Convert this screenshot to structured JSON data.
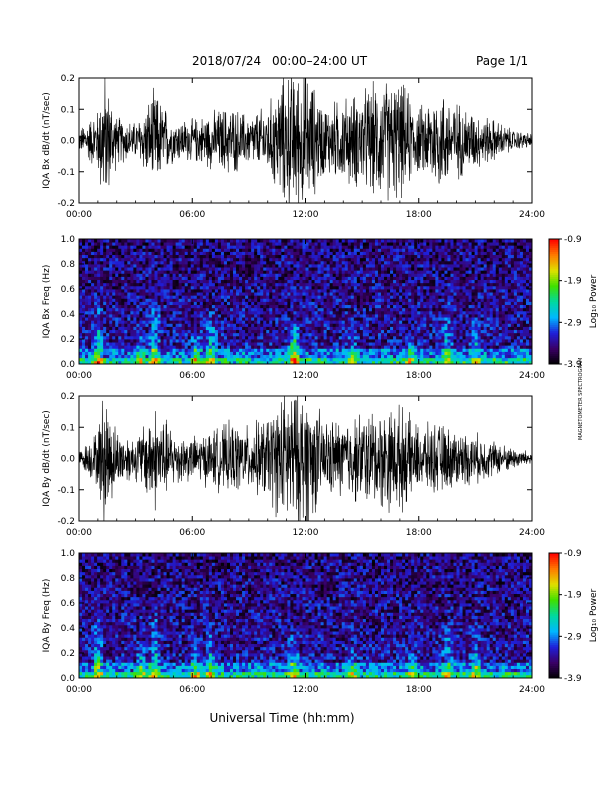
{
  "header": {
    "date": "2018/07/24",
    "time_range": "00:00–24:00 UT",
    "page": "Page 1/1"
  },
  "footer": {
    "xlabel": "Universal Time (hh:mm)"
  },
  "side_note": "MAGNETOMETER SPECTROGRAM",
  "colors": {
    "trace": "#000000",
    "frame": "#000000"
  },
  "colorbar": {
    "ticks": [
      "-0.9",
      "-1.9",
      "-2.9",
      "-3.9"
    ],
    "title": "Log₁₀ Power",
    "range": [
      -3.9,
      -0.9
    ],
    "colormap": [
      "#000000",
      "#3a0066",
      "#1f1fd9",
      "#00b7ff",
      "#00d9a0",
      "#3fe000",
      "#e0e000",
      "#ff7a00",
      "#ff0000"
    ]
  },
  "chart_data": [
    {
      "type": "line",
      "title": "2018/07/24  00:00–24:00 UT",
      "ylabel": "IQA Bx dB/dt (nT/sec)",
      "xlabel": "",
      "xlim": [
        0,
        24
      ],
      "ylim": [
        -0.2,
        0.2
      ],
      "x_ticks": [
        "00:00",
        "06:00",
        "12:00",
        "18:00",
        "24:00"
      ],
      "y_ticks": [
        "0.2",
        "0.1",
        "0.0",
        "-0.1",
        "-0.2"
      ],
      "series": [
        {
          "hours": [
            0,
            1,
            1.3,
            2,
            3,
            4,
            5,
            6,
            7,
            8,
            9,
            10,
            11,
            11.5,
            12,
            13,
            14,
            15,
            16,
            17,
            18,
            19,
            20,
            21,
            22,
            23,
            24
          ],
          "amplitude": [
            0.03,
            0.09,
            0.2,
            0.07,
            0.05,
            0.14,
            0.06,
            0.06,
            0.08,
            0.1,
            0.07,
            0.1,
            0.2,
            0.2,
            0.2,
            0.1,
            0.12,
            0.14,
            0.17,
            0.17,
            0.09,
            0.15,
            0.11,
            0.08,
            0.06,
            0.03,
            0.02
          ]
        }
      ]
    },
    {
      "type": "heatmap",
      "ylabel": "IQA Bx Freq (Hz)",
      "xlim": [
        0,
        24
      ],
      "ylim": [
        0,
        1.0
      ],
      "x_ticks": [
        "00:00",
        "06:00",
        "12:00",
        "18:00",
        "24:00"
      ],
      "y_ticks": [
        "1.0",
        "0.8",
        "0.6",
        "0.4",
        "0.2",
        "0.0"
      ],
      "value_range": [
        -3.9,
        -0.9
      ],
      "bursts": [
        {
          "hour": 1.0,
          "top_hz": 0.55,
          "peak": -2.2
        },
        {
          "hour": 3.3,
          "top_hz": 0.35,
          "peak": -2.6
        },
        {
          "hour": 4.0,
          "top_hz": 0.65,
          "peak": -2.4
        },
        {
          "hour": 6.2,
          "top_hz": 0.35,
          "peak": -2.6
        },
        {
          "hour": 7.0,
          "top_hz": 0.5,
          "peak": -2.5
        },
        {
          "hour": 11.4,
          "top_hz": 0.4,
          "peak": -1.3
        },
        {
          "hour": 14.5,
          "top_hz": 0.3,
          "peak": -2.6
        },
        {
          "hour": 17.6,
          "top_hz": 0.3,
          "peak": -2.4
        },
        {
          "hour": 19.5,
          "top_hz": 0.55,
          "peak": -2.6
        },
        {
          "hour": 21.0,
          "top_hz": 0.45,
          "peak": -2.6
        }
      ]
    },
    {
      "type": "line",
      "ylabel": "IQA By dB/dt (nT/sec)",
      "xlim": [
        0,
        24
      ],
      "ylim": [
        -0.2,
        0.2
      ],
      "x_ticks": [
        "00:00",
        "06:00",
        "12:00",
        "18:00",
        "24:00"
      ],
      "y_ticks": [
        "0.2",
        "0.1",
        "0.0",
        "-0.1",
        "-0.2"
      ],
      "series": [
        {
          "hours": [
            0,
            1,
            1.3,
            2,
            3,
            4,
            5,
            6,
            7,
            8,
            9,
            10,
            11,
            11.5,
            12,
            13,
            14,
            15,
            16,
            17,
            18,
            19,
            20,
            21,
            22,
            23,
            24
          ],
          "amplitude": [
            0.02,
            0.08,
            0.2,
            0.08,
            0.06,
            0.15,
            0.08,
            0.06,
            0.08,
            0.1,
            0.09,
            0.12,
            0.2,
            0.2,
            0.2,
            0.11,
            0.11,
            0.13,
            0.14,
            0.15,
            0.09,
            0.1,
            0.08,
            0.07,
            0.05,
            0.03,
            0.02
          ]
        }
      ]
    },
    {
      "type": "heatmap",
      "ylabel": "IQA By Freq (Hz)",
      "xlim": [
        0,
        24
      ],
      "ylim": [
        0,
        1.0
      ],
      "x_ticks": [
        "00:00",
        "06:00",
        "12:00",
        "18:00",
        "24:00"
      ],
      "y_ticks": [
        "1.0",
        "0.8",
        "0.6",
        "0.4",
        "0.2",
        "0.0"
      ],
      "value_range": [
        -3.9,
        -0.9
      ],
      "bursts": [
        {
          "hour": 1.0,
          "top_hz": 0.5,
          "peak": -2.0
        },
        {
          "hour": 3.3,
          "top_hz": 0.35,
          "peak": -2.6
        },
        {
          "hour": 4.0,
          "top_hz": 0.6,
          "peak": -2.4
        },
        {
          "hour": 6.2,
          "top_hz": 0.3,
          "peak": -2.6
        },
        {
          "hour": 7.0,
          "top_hz": 0.5,
          "peak": -2.5
        },
        {
          "hour": 11.4,
          "top_hz": 0.4,
          "peak": -2.3
        },
        {
          "hour": 14.5,
          "top_hz": 0.3,
          "peak": -2.6
        },
        {
          "hour": 17.6,
          "top_hz": 0.25,
          "peak": -2.4
        },
        {
          "hour": 19.5,
          "top_hz": 0.5,
          "peak": -2.6
        },
        {
          "hour": 21.0,
          "top_hz": 0.45,
          "peak": -2.6
        }
      ]
    }
  ]
}
